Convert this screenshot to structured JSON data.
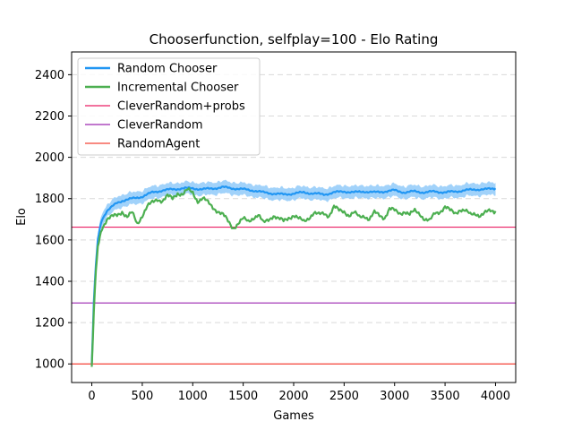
{
  "chart_data": {
    "type": "line",
    "title": "Chooserfunction, selfplay=100 - Elo Rating",
    "xlabel": "Games",
    "ylabel": "Elo",
    "xlim": [
      -200,
      4200
    ],
    "ylim": [
      910,
      2510
    ],
    "xticks": [
      0,
      500,
      1000,
      1500,
      2000,
      2500,
      3000,
      3500,
      4000
    ],
    "yticks": [
      1000,
      1200,
      1400,
      1600,
      1800,
      2000,
      2200,
      2400
    ],
    "grid": "horizontal-dashed",
    "legend_position": "top-left",
    "series": [
      {
        "name": "Random Chooser",
        "color": "#2196f3",
        "band_color": "#90caf9",
        "band_width": 30,
        "points": [
          [
            0,
            1000
          ],
          [
            20,
            1300
          ],
          [
            40,
            1480
          ],
          [
            60,
            1600
          ],
          [
            80,
            1660
          ],
          [
            100,
            1700
          ],
          [
            150,
            1740
          ],
          [
            200,
            1760
          ],
          [
            250,
            1780
          ],
          [
            300,
            1790
          ],
          [
            400,
            1800
          ],
          [
            500,
            1810
          ],
          [
            600,
            1830
          ],
          [
            700,
            1840
          ],
          [
            800,
            1845
          ],
          [
            900,
            1850
          ],
          [
            1000,
            1850
          ],
          [
            1100,
            1845
          ],
          [
            1200,
            1850
          ],
          [
            1300,
            1855
          ],
          [
            1400,
            1850
          ],
          [
            1500,
            1845
          ],
          [
            1600,
            1840
          ],
          [
            1700,
            1830
          ],
          [
            1800,
            1825
          ],
          [
            1900,
            1820
          ],
          [
            2000,
            1825
          ],
          [
            2100,
            1830
          ],
          [
            2200,
            1825
          ],
          [
            2300,
            1820
          ],
          [
            2400,
            1830
          ],
          [
            2500,
            1835
          ],
          [
            2600,
            1830
          ],
          [
            2700,
            1835
          ],
          [
            2800,
            1830
          ],
          [
            2900,
            1835
          ],
          [
            3000,
            1840
          ],
          [
            3100,
            1830
          ],
          [
            3200,
            1835
          ],
          [
            3300,
            1830
          ],
          [
            3400,
            1835
          ],
          [
            3500,
            1830
          ],
          [
            3600,
            1835
          ],
          [
            3700,
            1840
          ],
          [
            3800,
            1845
          ],
          [
            3900,
            1845
          ],
          [
            4000,
            1850
          ]
        ]
      },
      {
        "name": "Incremental Chooser",
        "color": "#4caf50",
        "points": [
          [
            0,
            985
          ],
          [
            20,
            1250
          ],
          [
            40,
            1450
          ],
          [
            60,
            1560
          ],
          [
            80,
            1620
          ],
          [
            100,
            1660
          ],
          [
            150,
            1700
          ],
          [
            200,
            1710
          ],
          [
            250,
            1720
          ],
          [
            300,
            1740
          ],
          [
            350,
            1710
          ],
          [
            400,
            1730
          ],
          [
            450,
            1680
          ],
          [
            500,
            1720
          ],
          [
            550,
            1760
          ],
          [
            600,
            1780
          ],
          [
            650,
            1800
          ],
          [
            700,
            1790
          ],
          [
            750,
            1810
          ],
          [
            800,
            1800
          ],
          [
            850,
            1830
          ],
          [
            900,
            1820
          ],
          [
            950,
            1840
          ],
          [
            1000,
            1830
          ],
          [
            1050,
            1790
          ],
          [
            1100,
            1800
          ],
          [
            1150,
            1780
          ],
          [
            1200,
            1760
          ],
          [
            1250,
            1740
          ],
          [
            1300,
            1720
          ],
          [
            1350,
            1690
          ],
          [
            1400,
            1660
          ],
          [
            1450,
            1680
          ],
          [
            1500,
            1700
          ],
          [
            1550,
            1690
          ],
          [
            1600,
            1710
          ],
          [
            1650,
            1720
          ],
          [
            1700,
            1680
          ],
          [
            1750,
            1700
          ],
          [
            1800,
            1720
          ],
          [
            1850,
            1700
          ],
          [
            1900,
            1690
          ],
          [
            1950,
            1710
          ],
          [
            2000,
            1720
          ],
          [
            2050,
            1700
          ],
          [
            2100,
            1690
          ],
          [
            2150,
            1710
          ],
          [
            2200,
            1730
          ],
          [
            2250,
            1720
          ],
          [
            2300,
            1730
          ],
          [
            2350,
            1720
          ],
          [
            2400,
            1760
          ],
          [
            2450,
            1740
          ],
          [
            2500,
            1740
          ],
          [
            2550,
            1720
          ],
          [
            2600,
            1730
          ],
          [
            2650,
            1710
          ],
          [
            2700,
            1720
          ],
          [
            2750,
            1700
          ],
          [
            2800,
            1730
          ],
          [
            2850,
            1720
          ],
          [
            2900,
            1710
          ],
          [
            2950,
            1750
          ],
          [
            3000,
            1740
          ],
          [
            3050,
            1730
          ],
          [
            3100,
            1740
          ],
          [
            3150,
            1720
          ],
          [
            3200,
            1740
          ],
          [
            3250,
            1730
          ],
          [
            3300,
            1700
          ],
          [
            3350,
            1690
          ],
          [
            3400,
            1730
          ],
          [
            3450,
            1740
          ],
          [
            3500,
            1760
          ],
          [
            3550,
            1740
          ],
          [
            3600,
            1730
          ],
          [
            3650,
            1750
          ],
          [
            3700,
            1740
          ],
          [
            3750,
            1720
          ],
          [
            3800,
            1730
          ],
          [
            3850,
            1720
          ],
          [
            3900,
            1730
          ],
          [
            3950,
            1740
          ],
          [
            4000,
            1740
          ]
        ]
      }
    ],
    "reference_lines": [
      {
        "name": "CleverRandom+probs",
        "value": 1662,
        "color": "#e91e63"
      },
      {
        "name": "CleverRandom",
        "value": 1295,
        "color": "#9c27b0"
      },
      {
        "name": "RandomAgent",
        "value": 1000,
        "color": "#f44336"
      }
    ]
  }
}
